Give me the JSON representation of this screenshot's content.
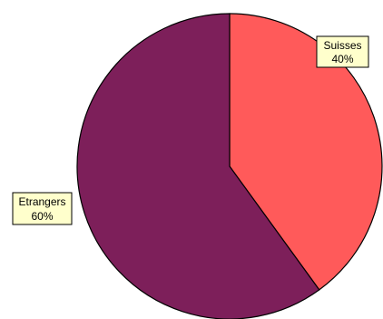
{
  "chart_data": {
    "type": "pie",
    "title": "",
    "start_angle_deg": 0,
    "direction": "clockwise",
    "slices": [
      {
        "name": "Suisses",
        "value": 40,
        "value_label": "40%",
        "color": "#ff5a5a"
      },
      {
        "name": "Etrangers",
        "value": 60,
        "value_label": "60%",
        "color": "#7d1f5a"
      }
    ],
    "slice_border_color": "#000000",
    "label_box_color": "#ffffcc"
  }
}
